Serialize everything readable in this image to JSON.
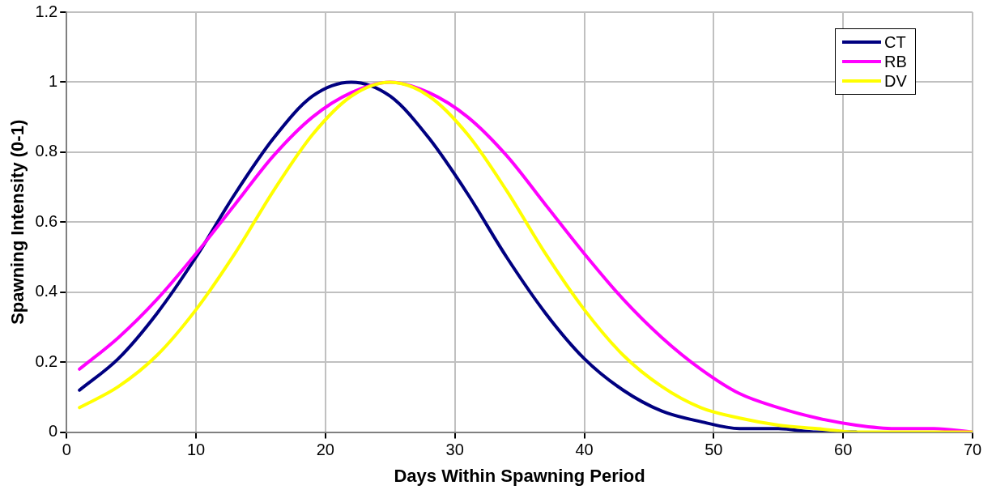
{
  "chart_data": {
    "type": "line",
    "xlabel": "Days Within Spawning Period",
    "ylabel": "Spawning Intensity (0-1)",
    "x": [
      1,
      4,
      7,
      10,
      13,
      16,
      19,
      22,
      25,
      28,
      31,
      34,
      37,
      40,
      43,
      46,
      49,
      52,
      55,
      58,
      61,
      64,
      67,
      70
    ],
    "series": [
      {
        "name": "CT",
        "color": "#000080",
        "values": [
          0.12,
          0.21,
          0.34,
          0.5,
          0.68,
          0.84,
          0.96,
          1,
          0.96,
          0.84,
          0.68,
          0.5,
          0.34,
          0.21,
          0.12,
          0.06,
          0.03,
          0.01,
          0.01,
          0,
          0,
          null,
          null,
          null
        ]
      },
      {
        "name": "RB",
        "color": "#ff00ff",
        "values": [
          0.18,
          0.27,
          0.38,
          0.51,
          0.65,
          0.79,
          0.9,
          0.97,
          1,
          0.97,
          0.9,
          0.79,
          0.65,
          0.51,
          0.38,
          0.27,
          0.18,
          0.11,
          0.07,
          0.04,
          0.02,
          0.01,
          0.01,
          0
        ]
      },
      {
        "name": "DV",
        "color": "#ffff00",
        "values": [
          0.07,
          0.13,
          0.22,
          0.35,
          0.51,
          0.69,
          0.85,
          0.96,
          1,
          0.96,
          0.85,
          0.69,
          0.51,
          0.35,
          0.22,
          0.13,
          0.07,
          0.04,
          0.02,
          0.01,
          0,
          0,
          0,
          0
        ]
      }
    ],
    "xlim": [
      0,
      70
    ],
    "xticks": [
      0,
      10,
      20,
      30,
      40,
      50,
      60,
      70
    ],
    "ylim": [
      0,
      1.2
    ],
    "yticks": [
      0,
      0.2,
      0.4,
      0.6,
      0.8,
      1,
      1.2
    ],
    "grid": true,
    "legend": "top right",
    "marker": "none",
    "line_style": "solid"
  }
}
